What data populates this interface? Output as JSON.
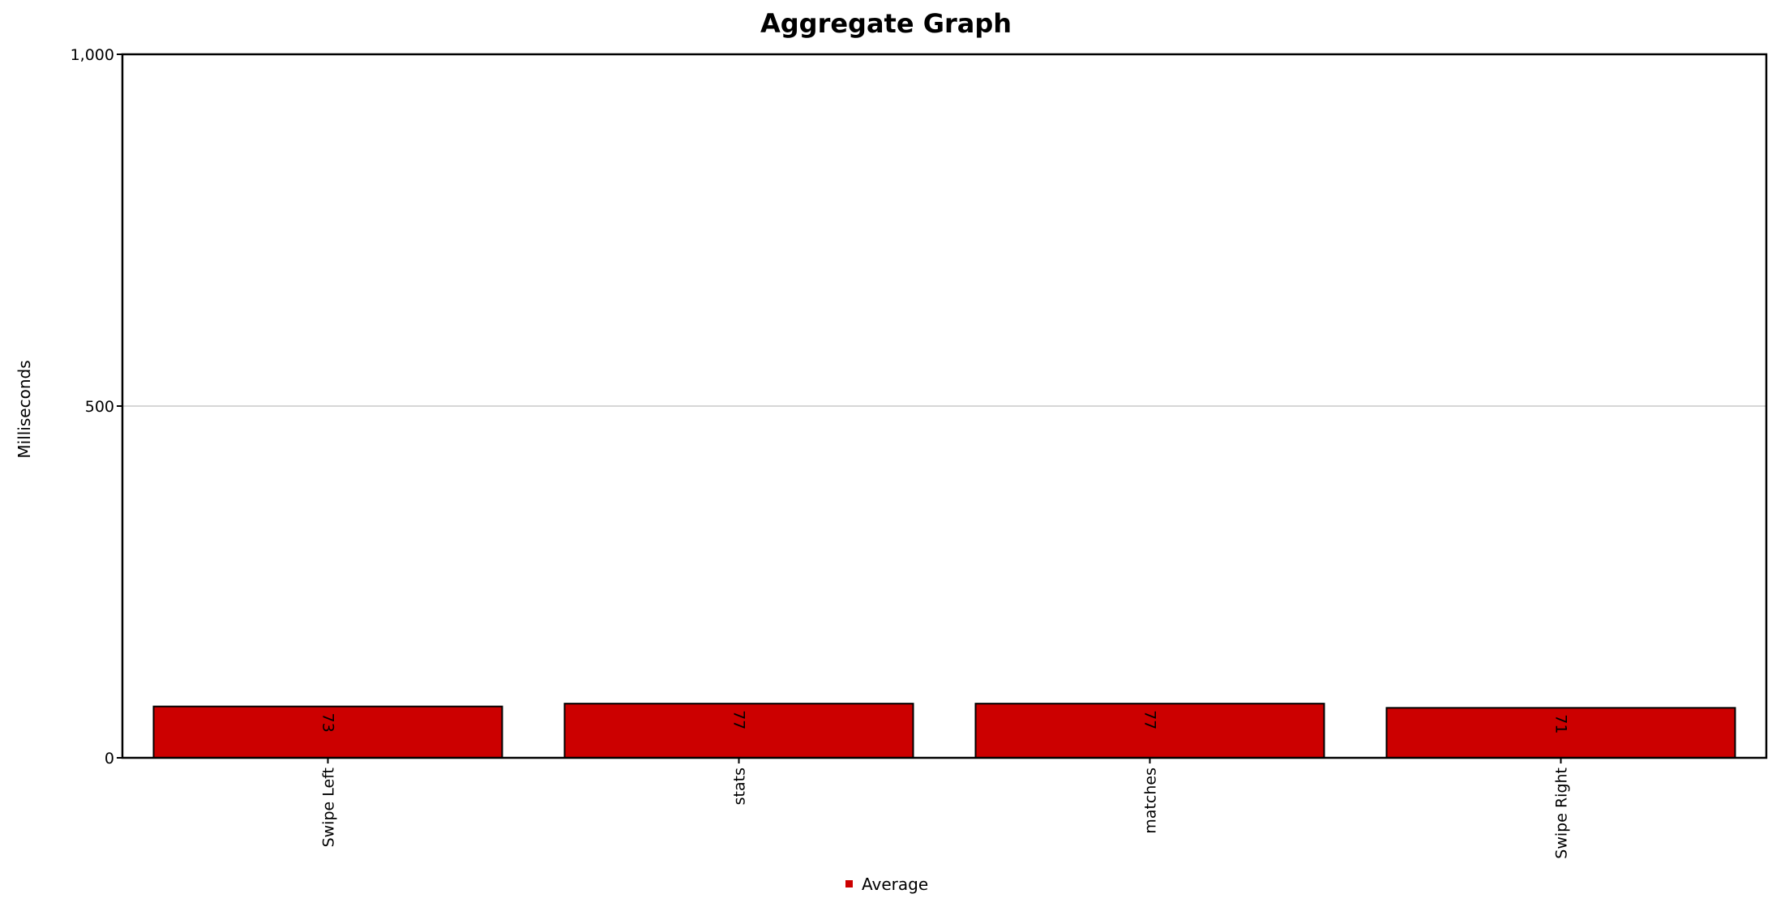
{
  "chart_data": {
    "type": "bar",
    "title": "Aggregate Graph",
    "xlabel": "",
    "ylabel": "Milliseconds",
    "categories": [
      "Swipe Left",
      "stats",
      "matches",
      "Swipe Right"
    ],
    "series": [
      {
        "name": "Average",
        "values": [
          73,
          77,
          77,
          71
        ],
        "color": "#cc0000"
      }
    ],
    "ylim": [
      0,
      1000
    ],
    "yticks": [
      0,
      500,
      1000
    ],
    "ytick_labels": [
      "0",
      "500",
      "1,000"
    ],
    "grid": true,
    "legend_position": "bottom-center",
    "data_labels": [
      "73",
      "77",
      "77",
      "71"
    ]
  }
}
